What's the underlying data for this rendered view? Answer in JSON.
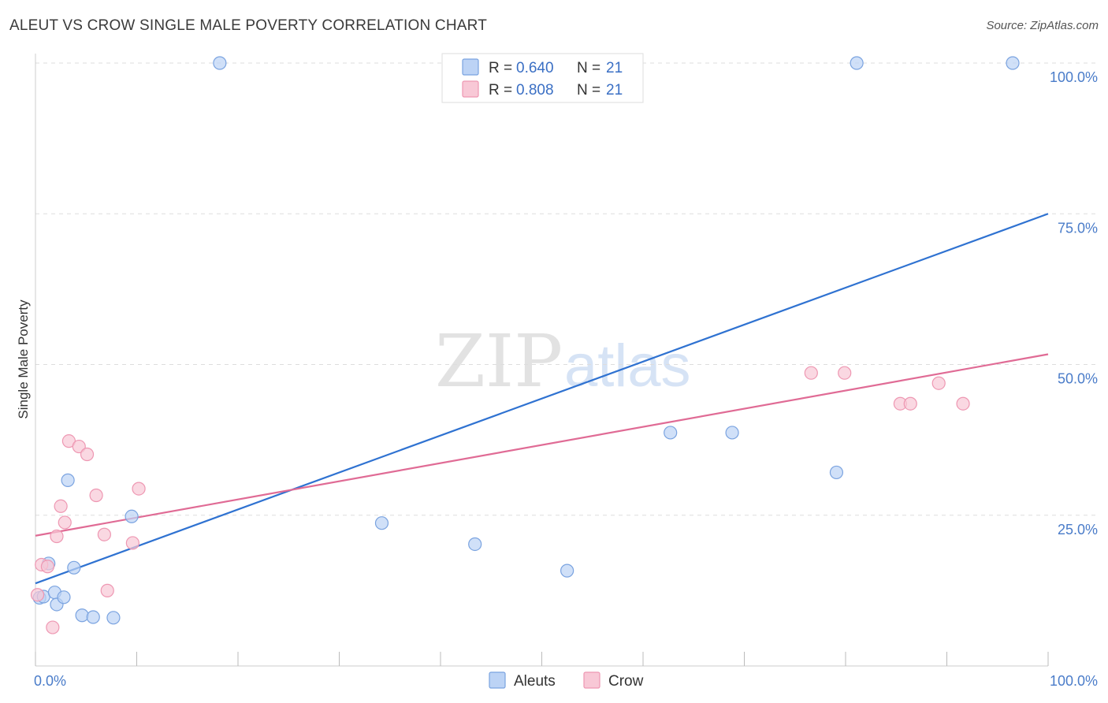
{
  "header": {
    "title": "ALEUT VS CROW SINGLE MALE POVERTY CORRELATION CHART",
    "source": "Source: ZipAtlas.com"
  },
  "colors": {
    "aleut_fill": "#bcd3f5",
    "aleut_stroke": "#7aa3e0",
    "aleut_line": "#2f72d1",
    "crow_fill": "#f8c8d6",
    "crow_stroke": "#ee97b2",
    "crow_line": "#e06b95",
    "grid": "#dddddd",
    "tick_text": "#4a7cc9"
  },
  "legend": {
    "rows": [
      {
        "r_label": "R = ",
        "r_value": "0.640",
        "n_label": "N = ",
        "n_value": "21"
      },
      {
        "r_label": "R = ",
        "r_value": "0.808",
        "n_label": "N = ",
        "n_value": "21"
      }
    ]
  },
  "watermark": {
    "zip": "ZIP",
    "atlas": "atlas"
  },
  "chart_data": {
    "type": "scatter",
    "title": "ALEUT VS CROW SINGLE MALE POVERTY CORRELATION CHART",
    "xlabel": "",
    "ylabel": "Single Male Poverty",
    "xlim": [
      0,
      100
    ],
    "ylim": [
      0,
      100
    ],
    "x_tick_labels": [
      "0.0%",
      "100.0%"
    ],
    "y_tick_values": [
      25,
      50,
      75,
      100
    ],
    "y_tick_labels": [
      "25.0%",
      "50.0%",
      "75.0%",
      "100.0%"
    ],
    "legend_position": "bottom-center",
    "series": [
      {
        "name": "Aleuts",
        "r": 0.64,
        "n": 21,
        "trend": {
          "x": [
            0,
            100
          ],
          "y": [
            13.7,
            75.0
          ]
        },
        "points": [
          {
            "x": 0.4,
            "y": 11.3
          },
          {
            "x": 0.8,
            "y": 11.5
          },
          {
            "x": 1.3,
            "y": 17.0
          },
          {
            "x": 1.9,
            "y": 12.2
          },
          {
            "x": 2.1,
            "y": 10.2
          },
          {
            "x": 2.8,
            "y": 11.4
          },
          {
            "x": 3.2,
            "y": 30.8
          },
          {
            "x": 3.8,
            "y": 16.3
          },
          {
            "x": 4.6,
            "y": 8.4
          },
          {
            "x": 5.7,
            "y": 8.1
          },
          {
            "x": 7.7,
            "y": 8.0
          },
          {
            "x": 9.5,
            "y": 24.8
          },
          {
            "x": 18.2,
            "y": 100.0
          },
          {
            "x": 34.2,
            "y": 23.7
          },
          {
            "x": 43.4,
            "y": 20.2
          },
          {
            "x": 52.5,
            "y": 15.8
          },
          {
            "x": 62.7,
            "y": 38.7
          },
          {
            "x": 68.8,
            "y": 38.7
          },
          {
            "x": 79.1,
            "y": 32.1
          },
          {
            "x": 81.1,
            "y": 100.0
          },
          {
            "x": 96.5,
            "y": 100.0
          }
        ]
      },
      {
        "name": "Crow",
        "r": 0.808,
        "n": 21,
        "trend": {
          "x": [
            0,
            100
          ],
          "y": [
            21.6,
            51.7
          ]
        },
        "points": [
          {
            "x": 0.2,
            "y": 11.8
          },
          {
            "x": 0.6,
            "y": 16.8
          },
          {
            "x": 1.2,
            "y": 16.5
          },
          {
            "x": 1.7,
            "y": 6.4
          },
          {
            "x": 2.1,
            "y": 21.5
          },
          {
            "x": 2.5,
            "y": 26.5
          },
          {
            "x": 2.9,
            "y": 23.8
          },
          {
            "x": 3.3,
            "y": 37.3
          },
          {
            "x": 4.3,
            "y": 36.4
          },
          {
            "x": 5.1,
            "y": 35.1
          },
          {
            "x": 6.0,
            "y": 28.3
          },
          {
            "x": 6.8,
            "y": 21.8
          },
          {
            "x": 7.1,
            "y": 12.5
          },
          {
            "x": 9.6,
            "y": 20.4
          },
          {
            "x": 10.2,
            "y": 29.4
          },
          {
            "x": 76.6,
            "y": 48.6
          },
          {
            "x": 79.9,
            "y": 48.6
          },
          {
            "x": 85.4,
            "y": 43.5
          },
          {
            "x": 86.4,
            "y": 43.5
          },
          {
            "x": 89.2,
            "y": 46.9
          },
          {
            "x": 91.6,
            "y": 43.5
          }
        ]
      }
    ]
  }
}
